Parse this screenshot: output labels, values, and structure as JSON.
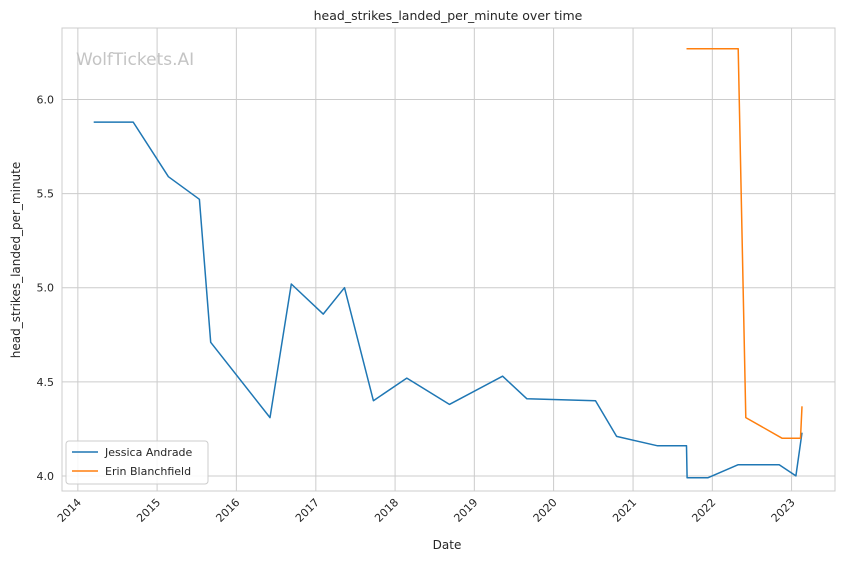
{
  "chart_data": {
    "type": "line",
    "title": "head_strikes_landed_per_minute over time",
    "xlabel": "Date",
    "ylabel": "head_strikes_landed_per_minute",
    "watermark": "WolfTickets.AI",
    "x_ticks": [
      "2014",
      "2015",
      "2016",
      "2017",
      "2018",
      "2019",
      "2020",
      "2021",
      "2022",
      "2023"
    ],
    "y_ticks": [
      "4.0",
      "4.5",
      "5.0",
      "5.5",
      "6.0"
    ],
    "xlim": [
      "2013-10-20",
      "2023-07-20"
    ],
    "ylim": [
      3.92,
      6.38
    ],
    "grid": true,
    "legend_position": "lower-left",
    "series": [
      {
        "name": "Jessica Andrade",
        "color": "#1f77b4",
        "points": [
          [
            "2014-03-15",
            5.88
          ],
          [
            "2014-09-13",
            5.88
          ],
          [
            "2015-02-22",
            5.59
          ],
          [
            "2015-07-15",
            5.47
          ],
          [
            "2015-09-05",
            4.71
          ],
          [
            "2016-06-04",
            4.31
          ],
          [
            "2016-09-10",
            5.02
          ],
          [
            "2017-02-04",
            4.86
          ],
          [
            "2017-05-13",
            5.0
          ],
          [
            "2017-09-23",
            4.4
          ],
          [
            "2018-02-24",
            4.52
          ],
          [
            "2018-09-08",
            4.38
          ],
          [
            "2019-05-11",
            4.53
          ],
          [
            "2019-08-31",
            4.41
          ],
          [
            "2020-07-12",
            4.4
          ],
          [
            "2020-10-17",
            4.21
          ],
          [
            "2021-04-24",
            4.16
          ],
          [
            "2021-09-04",
            4.16
          ],
          [
            "2021-09-07",
            3.99
          ],
          [
            "2021-12-11",
            3.99
          ],
          [
            "2022-04-30",
            4.06
          ],
          [
            "2022-11-05",
            4.06
          ],
          [
            "2023-01-21",
            4.0
          ],
          [
            "2023-02-18",
            4.23
          ]
        ]
      },
      {
        "name": "Erin Blanchfield",
        "color": "#ff7f0e",
        "points": [
          [
            "2021-09-04",
            6.27
          ],
          [
            "2022-04-30",
            6.27
          ],
          [
            "2022-06-04",
            4.31
          ],
          [
            "2022-11-19",
            4.2
          ],
          [
            "2023-02-11",
            4.2
          ],
          [
            "2023-02-18",
            4.37
          ]
        ]
      }
    ]
  }
}
